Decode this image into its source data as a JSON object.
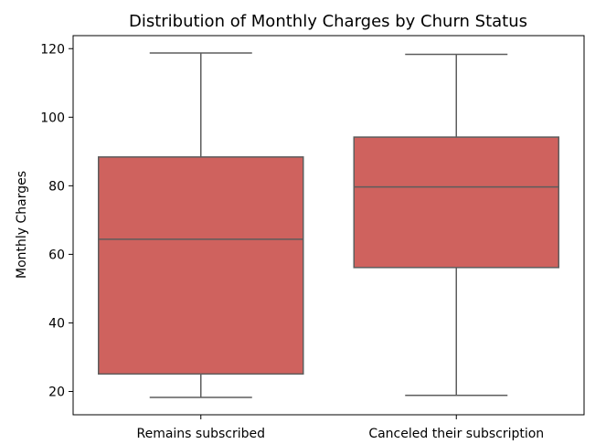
{
  "chart_data": {
    "type": "box",
    "title": "Distribution of Monthly Charges by Churn Status",
    "xlabel": "",
    "ylabel": "Monthly Charges",
    "categories": [
      "Remains subscribed",
      "Canceled their subscription"
    ],
    "boxes": [
      {
        "whisker_low": 18.25,
        "q1": 25.1,
        "median": 64.4,
        "q3": 88.4,
        "whisker_high": 118.75
      },
      {
        "whisker_low": 18.85,
        "q1": 56.15,
        "median": 79.65,
        "q3": 94.2,
        "whisker_high": 118.35
      }
    ],
    "ylim": [
      13.2,
      123.8
    ],
    "yticks": [
      20,
      40,
      60,
      80,
      100,
      120
    ],
    "grid": false,
    "colors": {
      "box_fill": "#cf625e",
      "box_line": "#5d5d5d",
      "axis": "#000000"
    }
  }
}
